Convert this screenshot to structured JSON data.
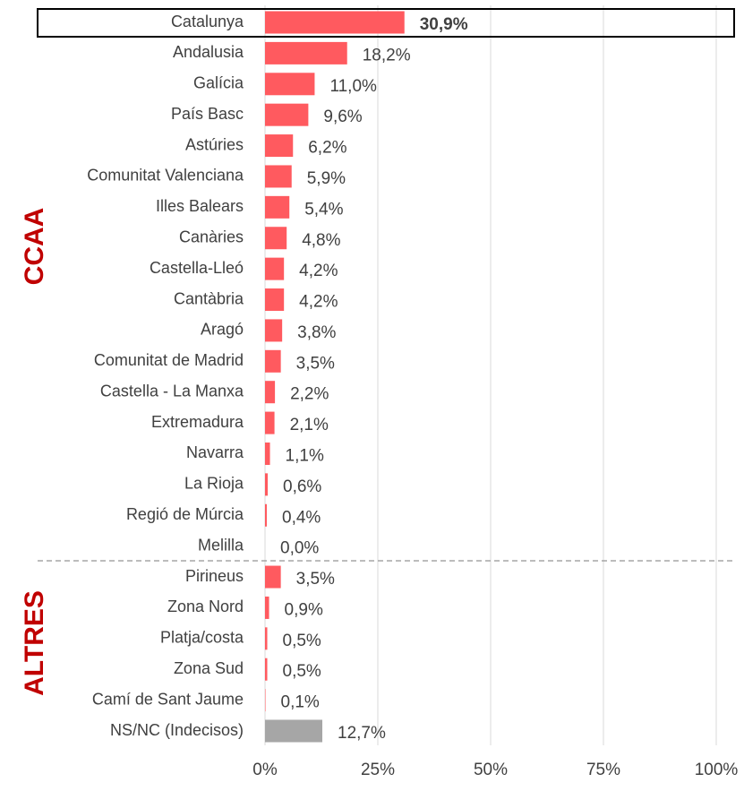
{
  "chart_data": {
    "type": "bar",
    "orientation": "horizontal",
    "categories": [
      "Catalunya",
      "Andalusia",
      "Galícia",
      "País Basc",
      "Astúries",
      "Comunitat Valenciana",
      "Illes Balears",
      "Canàries",
      "Castella-Lleó",
      "Cantàbria",
      "Aragó",
      "Comunitat de Madrid",
      "Castella - La Manxa",
      "Extremadura",
      "Navarra",
      "La Rioja",
      "Regió de Múrcia",
      "Melilla",
      "Pirineus",
      "Zona Nord",
      "Platja/costa",
      "Zona Sud",
      "Camí de Sant Jaume",
      "NS/NC (Indecisos)"
    ],
    "values": [
      30.9,
      18.2,
      11.0,
      9.6,
      6.2,
      5.9,
      5.4,
      4.8,
      4.2,
      4.2,
      3.8,
      3.5,
      2.2,
      2.1,
      1.1,
      0.6,
      0.4,
      0.0,
      3.5,
      0.9,
      0.5,
      0.5,
      0.1,
      12.7
    ],
    "value_labels": [
      "30,9%",
      "18,2%",
      "11,0%",
      "9,6%",
      "6,2%",
      "5,9%",
      "5,4%",
      "4,8%",
      "4,2%",
      "4,2%",
      "3,8%",
      "3,5%",
      "2,2%",
      "2,1%",
      "1,1%",
      "0,6%",
      "0,4%",
      "0,0%",
      "3,5%",
      "0,9%",
      "0,5%",
      "0,5%",
      "0,1%",
      "12,7%"
    ],
    "colors": [
      "#ff5a5f",
      "#ff5a5f",
      "#ff5a5f",
      "#ff5a5f",
      "#ff5a5f",
      "#ff5a5f",
      "#ff5a5f",
      "#ff5a5f",
      "#ff5a5f",
      "#ff5a5f",
      "#ff5a5f",
      "#ff5a5f",
      "#ff5a5f",
      "#ff5a5f",
      "#ff5a5f",
      "#ff5a5f",
      "#ff5a5f",
      "#ff5a5f",
      "#ff5a5f",
      "#ff5a5f",
      "#ff5a5f",
      "#ff5a5f",
      "#ff5a5f",
      "#a6a6a6"
    ],
    "xlim": [
      0,
      100
    ],
    "xticks": [
      {
        "value": 0,
        "label": "0%"
      },
      {
        "value": 25,
        "label": "25%"
      },
      {
        "value": 50,
        "label": "50%"
      },
      {
        "value": 75,
        "label": "75%"
      },
      {
        "value": 100,
        "label": "100%"
      }
    ],
    "grid": true,
    "annotations": [
      "CCAA",
      "ALTRES"
    ]
  }
}
